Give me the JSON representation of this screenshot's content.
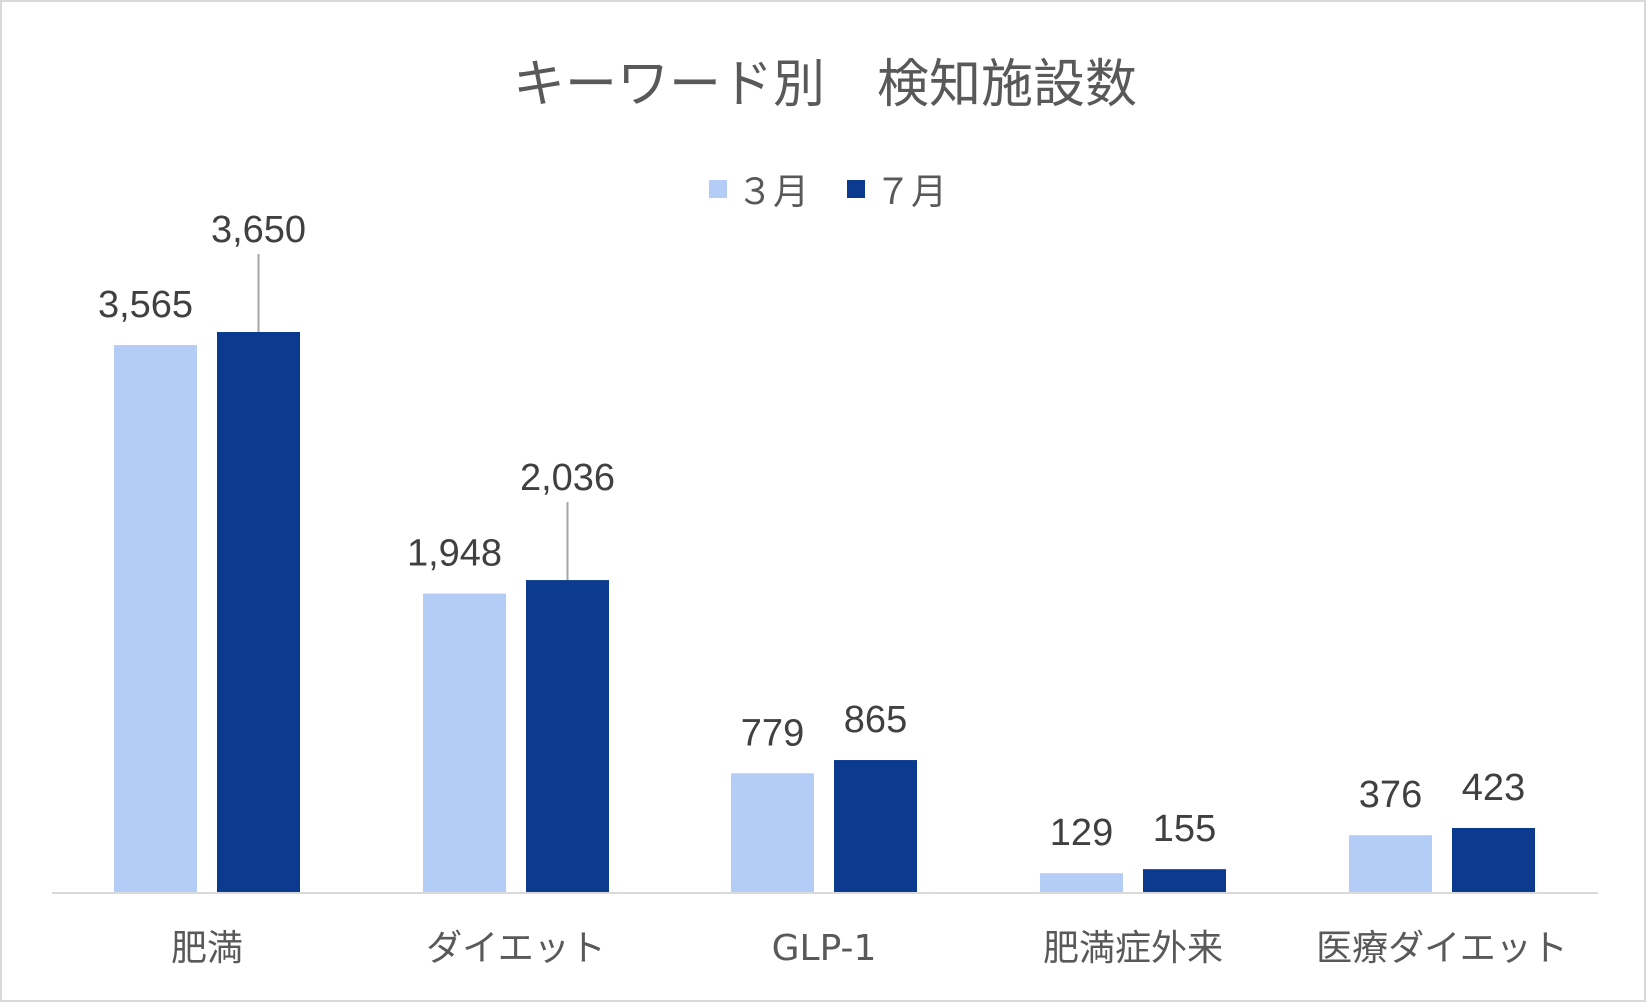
{
  "chart_data": {
    "type": "bar",
    "title": "キーワード別　検知施設数",
    "categories": [
      "肥満",
      "ダイエット",
      "GLP-1",
      "肥満症外来",
      "医療ダイエット"
    ],
    "series": [
      {
        "name": "３月",
        "color": "#b4cdf7",
        "values": [
          3565,
          1948,
          779,
          129,
          376
        ],
        "labels": [
          "3,565",
          "1,948",
          "779",
          "129",
          "376"
        ]
      },
      {
        "name": "７月",
        "color": "#0b3a8e",
        "values": [
          3650,
          2036,
          865,
          155,
          423
        ],
        "labels": [
          "3,650",
          "2,036",
          "865",
          "155",
          "423"
        ]
      }
    ],
    "ylim": [
      0,
      4200
    ],
    "legend_position": "top",
    "grid": false,
    "axis_color": "#d9d9d9"
  }
}
